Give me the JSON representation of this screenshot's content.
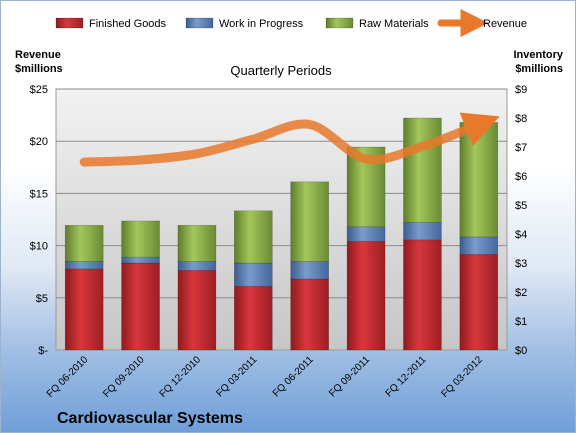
{
  "chart_data": {
    "type": "bar",
    "stacked": true,
    "title": "Quarterly Periods",
    "company": "Cardiovascular Systems",
    "left_axis_title": [
      "Revenue",
      "$millions"
    ],
    "right_axis_title": [
      "Inventory",
      "$millions"
    ],
    "categories": [
      "FQ 06-2010",
      "FQ 09-2010",
      "FQ 12-2010",
      "FQ 03-2011",
      "FQ 06-2011",
      "FQ 09-2011",
      "FQ 12-2011",
      "FQ 03-2012"
    ],
    "series": [
      {
        "name": "Finished Goods",
        "axis": "right",
        "color": "#c0262b",
        "values": [
          2.8,
          3.0,
          2.75,
          2.2,
          2.45,
          3.75,
          3.8,
          3.3
        ]
      },
      {
        "name": "Work in Progress",
        "axis": "right",
        "color": "#5b7fb6",
        "values": [
          0.25,
          0.2,
          0.3,
          0.8,
          0.6,
          0.5,
          0.6,
          0.6
        ]
      },
      {
        "name": "Raw Materials",
        "axis": "right",
        "color": "#89ad45",
        "values": [
          1.25,
          1.25,
          1.25,
          1.8,
          2.75,
          2.75,
          3.6,
          3.95
        ]
      },
      {
        "name": "Revenue",
        "axis": "left",
        "type": "line",
        "color": "#e8782a",
        "values": [
          18.0,
          18.2,
          18.8,
          20.2,
          21.6,
          18.3,
          19.5,
          21.6
        ]
      }
    ],
    "left_ticks": [
      "$-",
      "$5",
      "$10",
      "$15",
      "$20",
      "$25"
    ],
    "left_ylim": [
      0,
      25
    ],
    "right_ticks": [
      "$0",
      "$1",
      "$2",
      "$3",
      "$4",
      "$5",
      "$6",
      "$7",
      "$8",
      "$9"
    ],
    "right_ylim": [
      0,
      9
    ],
    "legend_position": "top",
    "grid": true
  }
}
